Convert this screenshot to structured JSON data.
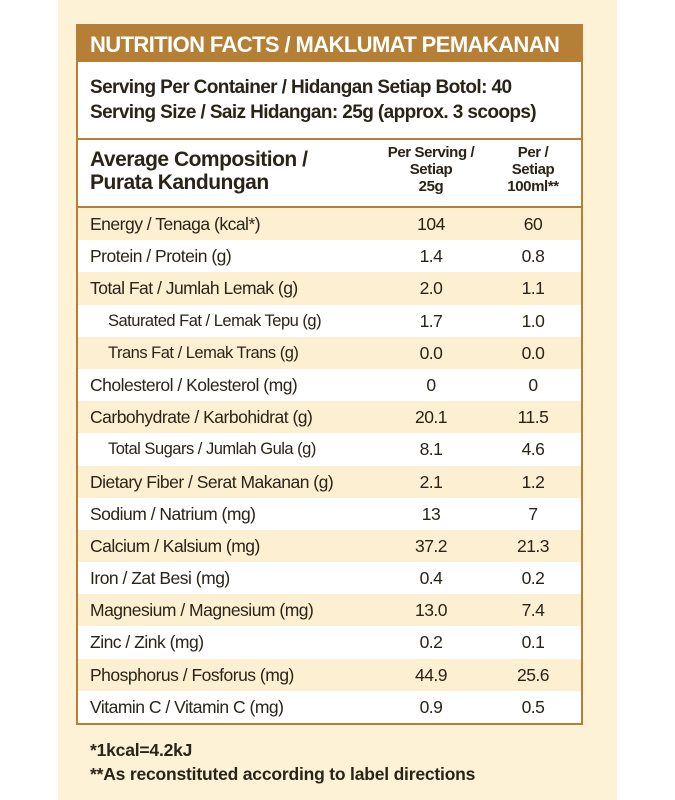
{
  "title": "NUTRITION FACTS / MAKLUMAT PEMAKANAN",
  "serving_per_container": "Serving Per Container / Hidangan Setiap Botol: 40",
  "serving_size": "Serving Size / Saiz Hidangan: 25g (approx. 3 scoops)",
  "columns": {
    "composition_line1": "Average Composition /",
    "composition_line2": "Purata Kandungan",
    "per_serving_line1": "Per Serving /",
    "per_serving_line2": "Setiap",
    "per_serving_line3": "25g",
    "per_100ml_line1": "Per /",
    "per_100ml_line2": "Setiap",
    "per_100ml_line3": "100ml**"
  },
  "rows": [
    {
      "label": "Energy / Tenaga (kcal*)",
      "per_serving": "104",
      "per_100ml": "60"
    },
    {
      "label": "Protein / Protein (g)",
      "per_serving": "1.4",
      "per_100ml": "0.8"
    },
    {
      "label": "Total Fat / Jumlah Lemak (g)",
      "per_serving": "2.0",
      "per_100ml": "1.1"
    },
    {
      "label": "Saturated Fat / Lemak Tepu (g)",
      "per_serving": "1.7",
      "per_100ml": "1.0"
    },
    {
      "label": "Trans Fat / Lemak Trans (g)",
      "per_serving": "0.0",
      "per_100ml": "0.0"
    },
    {
      "label": "Cholesterol / Kolesterol (mg)",
      "per_serving": "0",
      "per_100ml": "0"
    },
    {
      "label": "Carbohydrate / Karbohidrat (g)",
      "per_serving": "20.1",
      "per_100ml": "11.5"
    },
    {
      "label": "Total Sugars / Jumlah Gula (g)",
      "per_serving": "8.1",
      "per_100ml": "4.6"
    },
    {
      "label": "Dietary Fiber / Serat Makanan (g)",
      "per_serving": "2.1",
      "per_100ml": "1.2"
    },
    {
      "label": "Sodium / Natrium (mg)",
      "per_serving": "13",
      "per_100ml": "7"
    },
    {
      "label": "Calcium / Kalsium (mg)",
      "per_serving": "37.2",
      "per_100ml": "21.3"
    },
    {
      "label": "Iron / Zat Besi (mg)",
      "per_serving": "0.4",
      "per_100ml": "0.2"
    },
    {
      "label": "Magnesium / Magnesium (mg)",
      "per_serving": "13.0",
      "per_100ml": "7.4"
    },
    {
      "label": "Zinc / Zink (mg)",
      "per_serving": "0.2",
      "per_100ml": "0.1"
    },
    {
      "label": "Phosphorus / Fosforus (mg)",
      "per_serving": "44.9",
      "per_100ml": "25.6"
    },
    {
      "label": "Vitamin C / Vitamin C (mg)",
      "per_serving": "0.9",
      "per_100ml": "0.5"
    }
  ],
  "footnotes": [
    "*1kcal=4.2kJ",
    "**As reconstituted according to label directions"
  ]
}
